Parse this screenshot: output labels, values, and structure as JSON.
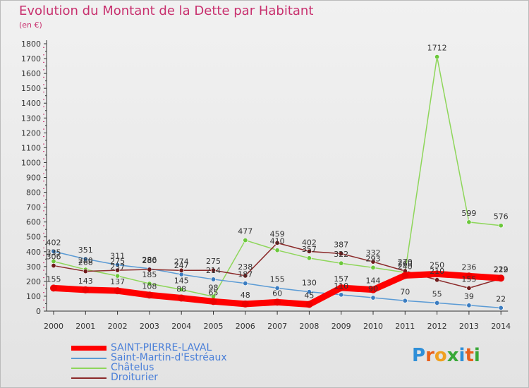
{
  "header": {
    "title": "Evolution du Montant de la Dette par Habitant",
    "subtitle": "(en €)"
  },
  "brand": {
    "letters": [
      {
        "ch": "P",
        "color": "#2f8fd8"
      },
      {
        "ch": "r",
        "color": "#e8601c"
      },
      {
        "ch": "o",
        "color": "#f0a020"
      },
      {
        "ch": "x",
        "color": "#38a838"
      },
      {
        "ch": "i",
        "color": "#2f8fd8"
      },
      {
        "ch": "t",
        "color": "#e8601c"
      },
      {
        "ch": "i",
        "color": "#38a838"
      }
    ]
  },
  "chart_data": {
    "type": "line",
    "x": [
      "2000",
      "2001",
      "2002",
      "2003",
      "2004",
      "2005",
      "2006",
      "2007",
      "2008",
      "2009",
      "2010",
      "2011",
      "2012",
      "2013",
      "2014"
    ],
    "yticks": [
      "0",
      "100",
      "200",
      "300",
      "400",
      "500",
      "600",
      "700",
      "800",
      "900",
      "1000",
      "1100",
      "1200",
      "1300",
      "1400",
      "1500",
      "1600",
      "1700",
      "1800"
    ],
    "ylim": [
      0,
      1800
    ],
    "grid": false,
    "legend_position": "bottom-left",
    "series": [
      {
        "name": "Châtelus",
        "color": "#8ed65a",
        "marker": "#6cc83c",
        "values": [
          335,
          280,
          237,
          185,
          145,
          98,
          477,
          410,
          357,
          322,
          293,
          260,
          1712,
          599,
          576
        ],
        "labels": [
          "335",
          "280",
          "237",
          "185",
          "145",
          "98",
          "477",
          "410",
          "357",
          "322",
          "293",
          "260",
          "1712",
          "599",
          "576"
        ]
      },
      {
        "name": "Saint-Martin-d'Estréaux",
        "color": "#5b9bd5",
        "marker": "#3a7cc0",
        "values": [
          402,
          351,
          311,
          286,
          247,
          214,
          187,
          155,
          130,
          110,
          90,
          70,
          55,
          39,
          22
        ],
        "labels": [
          "402",
          "351",
          "311",
          "286",
          "247",
          "214",
          "187",
          "155",
          "130",
          "110",
          "90",
          "70",
          "55",
          "39",
          "22"
        ]
      },
      {
        "name": "Droiturier",
        "color": "#8b2a2a",
        "marker": "#6e1a1a",
        "values": [
          306,
          268,
          275,
          280,
          274,
          275,
          238,
          459,
          402,
          387,
          332,
          270,
          210,
          155,
          219
        ],
        "labels": [
          "306",
          "268",
          "275",
          "280",
          "274",
          "275",
          "238",
          "459",
          "402",
          "387",
          "332",
          "270",
          "210",
          "155",
          "219"
        ]
      },
      {
        "name": "SAINT-PIERRE-LAVAL",
        "color": "#ff0000",
        "marker": "#ee0000",
        "values": [
          155,
          143,
          137,
          108,
          88,
          65,
          48,
          60,
          45,
          157,
          144,
          240,
          250,
          236,
          222
        ],
        "labels": [
          "155",
          "143",
          "137",
          "108",
          "88",
          "65",
          "48",
          "60",
          "45",
          "157",
          "144",
          "240",
          "250",
          "236",
          "222"
        ]
      }
    ],
    "legend_order": [
      "SAINT-PIERRE-LAVAL",
      "Saint-Martin-d'Estréaux",
      "Châtelus",
      "Droiturier"
    ]
  }
}
